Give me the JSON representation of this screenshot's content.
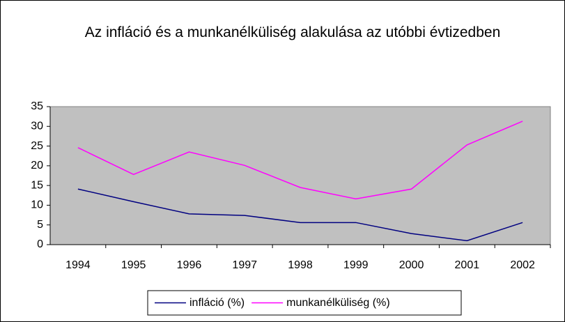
{
  "chart_data": {
    "type": "line",
    "title": "Az infláció és a munkanélküliség alakulása az utóbbi évtizedben",
    "categories": [
      "1994",
      "1995",
      "1996",
      "1997",
      "1998",
      "1999",
      "2000",
      "2001",
      "2002"
    ],
    "series": [
      {
        "name": "infláció (%)",
        "color": "#000080",
        "values": [
          14.1,
          10.9,
          7.8,
          7.4,
          5.6,
          5.6,
          2.8,
          1.0,
          5.6
        ]
      },
      {
        "name": "munkanélküliség (%)",
        "color": "#ff00ff",
        "values": [
          24.6,
          17.8,
          23.5,
          20.1,
          14.5,
          11.6,
          14.1,
          25.3,
          31.3
        ]
      }
    ],
    "ylim": [
      0,
      35
    ],
    "yticks": [
      0,
      5,
      10,
      15,
      20,
      25,
      30,
      35
    ],
    "grid": false,
    "legend": "bottom"
  }
}
